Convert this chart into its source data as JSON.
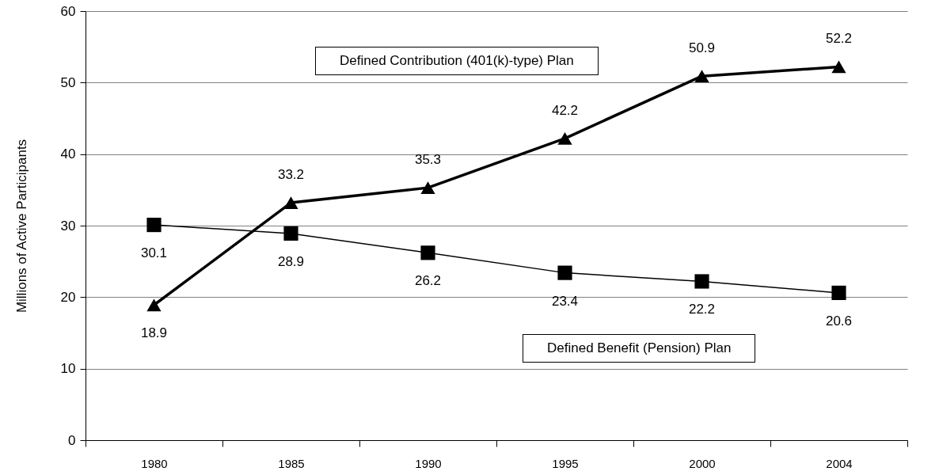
{
  "chart_data": {
    "type": "line",
    "ylabel": "Millions of Active Participants",
    "categories": [
      "1980",
      "1985",
      "1990",
      "1995",
      "2000",
      "2004"
    ],
    "series": [
      {
        "name": "Defined Contribution (401(k)-type) Plan",
        "color": "#000000",
        "marker": "triangle",
        "values": [
          18.9,
          33.2,
          35.3,
          42.2,
          50.9,
          52.2
        ]
      },
      {
        "name": "Defined Benefit (Pension) Plan",
        "color": "#000000",
        "marker": "square",
        "values": [
          30.1,
          28.9,
          26.2,
          23.4,
          22.2,
          20.6
        ]
      }
    ],
    "ylim": [
      0,
      60
    ],
    "yticks": [
      0,
      10,
      20,
      30,
      40,
      50,
      60
    ],
    "grid": "y",
    "data_labels": true,
    "legend": false
  }
}
